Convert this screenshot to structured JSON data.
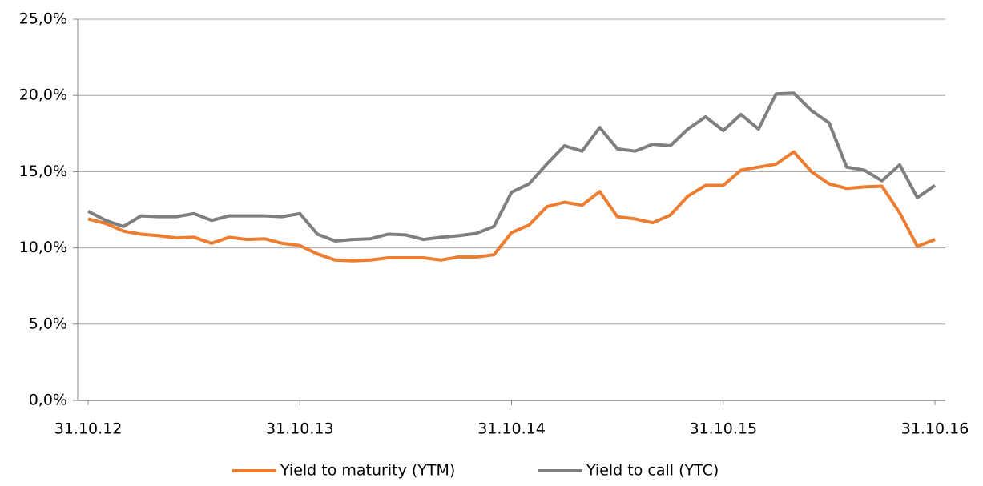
{
  "chart_data": {
    "type": "line",
    "categories": [
      "31.10.12",
      null,
      null,
      null,
      null,
      null,
      null,
      null,
      null,
      null,
      null,
      null,
      "31.10.13",
      null,
      null,
      null,
      null,
      null,
      null,
      null,
      null,
      null,
      null,
      null,
      "31.10.14",
      null,
      null,
      null,
      null,
      null,
      null,
      null,
      null,
      null,
      null,
      null,
      "31.10.15",
      null,
      null,
      null,
      null,
      null,
      null,
      null,
      null,
      null,
      null,
      null,
      "31.10.16"
    ],
    "series": [
      {
        "name": "Yield to maturity (YTM)",
        "color": "#ED7D31",
        "values": [
          11.9,
          11.6,
          11.1,
          10.9,
          10.8,
          10.65,
          10.7,
          10.3,
          10.7,
          10.55,
          10.6,
          10.3,
          10.15,
          9.6,
          9.2,
          9.15,
          9.2,
          9.35,
          9.35,
          9.35,
          9.2,
          9.4,
          9.4,
          9.55,
          11.0,
          11.5,
          12.7,
          13.0,
          12.8,
          13.7,
          12.05,
          11.9,
          11.65,
          12.15,
          13.4,
          14.1,
          14.1,
          15.1,
          15.3,
          15.5,
          16.3,
          15.0,
          14.2,
          13.9,
          14.0,
          14.05,
          12.3,
          10.1,
          10.55
        ]
      },
      {
        "name": "Yield to call (YTC)",
        "color": "#7F7F7F",
        "values": [
          12.4,
          11.8,
          11.4,
          12.1,
          12.05,
          12.05,
          12.25,
          11.8,
          12.1,
          12.1,
          12.1,
          12.05,
          12.25,
          10.9,
          10.45,
          10.55,
          10.6,
          10.9,
          10.85,
          10.55,
          10.7,
          10.8,
          10.95,
          11.4,
          13.65,
          14.2,
          15.5,
          16.7,
          16.35,
          17.9,
          16.5,
          16.35,
          16.8,
          16.7,
          17.8,
          18.6,
          17.7,
          18.75,
          17.8,
          20.1,
          20.15,
          19.0,
          18.2,
          15.3,
          15.1,
          14.4,
          15.45,
          13.3,
          14.1
        ]
      }
    ],
    "ylim": [
      0,
      25
    ],
    "yticks": [
      {
        "value": 0,
        "label": "0,0%"
      },
      {
        "value": 5,
        "label": "5,0%"
      },
      {
        "value": 10,
        "label": "10,0%"
      },
      {
        "value": 15,
        "label": "15,0%"
      },
      {
        "value": 20,
        "label": "20,0%"
      },
      {
        "value": 25,
        "label": "25,0%"
      }
    ],
    "grid": true,
    "legend": "bottom"
  }
}
